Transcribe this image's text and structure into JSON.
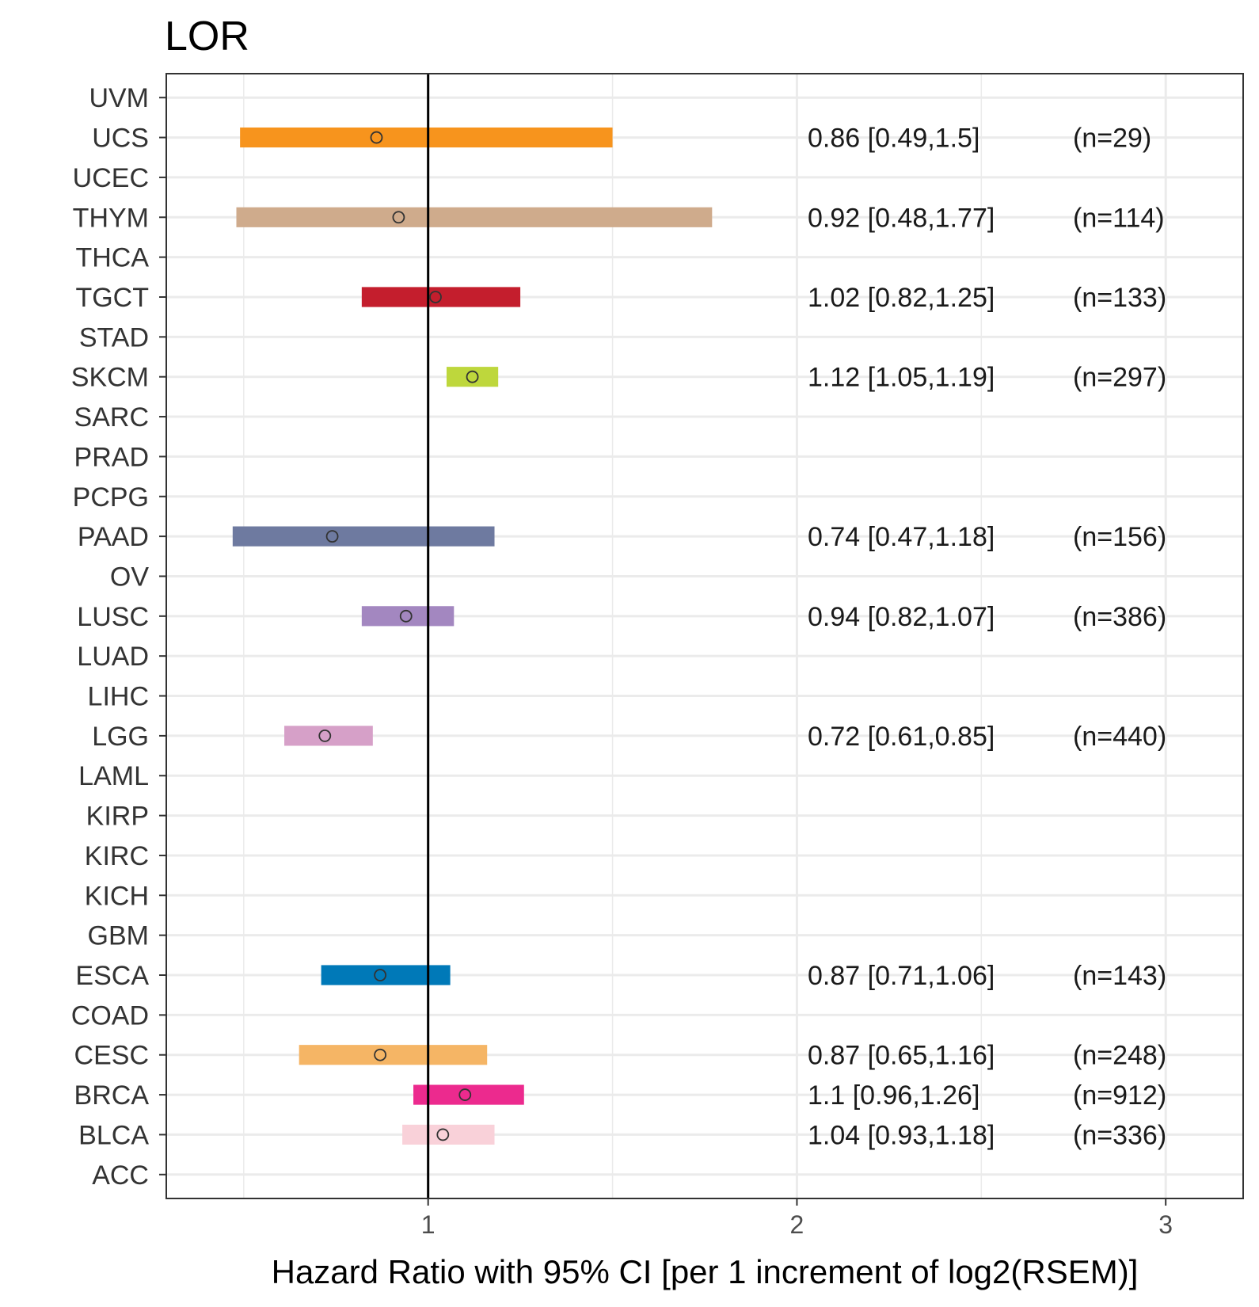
{
  "chart_data": {
    "type": "forest",
    "title": "LOR",
    "xlabel": "Hazard Ratio with 95% CI [per 1 increment of log2(RSEM)]",
    "ylabel": "",
    "xlim": [
      0.29,
      3.21
    ],
    "x_ticks": [
      1,
      2,
      3
    ],
    "x_tick_labels": [
      "1",
      "2",
      "3"
    ],
    "reference_line": 1,
    "grid": true,
    "categories": [
      "ACC",
      "BLCA",
      "BRCA",
      "CESC",
      "COAD",
      "ESCA",
      "GBM",
      "KICH",
      "KIRC",
      "KIRP",
      "LAML",
      "LGG",
      "LIHC",
      "LUAD",
      "LUSC",
      "OV",
      "PAAD",
      "PCPG",
      "PRAD",
      "SARC",
      "SKCM",
      "STAD",
      "TGCT",
      "THCA",
      "THYM",
      "UCEC",
      "UCS",
      "UVM"
    ],
    "rows": [
      {
        "cancer": "UCS",
        "hr": 0.86,
        "low": 0.49,
        "high": 1.5,
        "label": "0.86 [0.49,1.5]",
        "n": "(n=29)",
        "color": "#f7941d"
      },
      {
        "cancer": "THYM",
        "hr": 0.92,
        "low": 0.48,
        "high": 1.77,
        "label": "0.92 [0.48,1.77]",
        "n": "(n=114)",
        "color": "#cfab8c"
      },
      {
        "cancer": "TGCT",
        "hr": 1.02,
        "low": 0.82,
        "high": 1.25,
        "label": "1.02 [0.82,1.25]",
        "n": "(n=133)",
        "color": "#c41e2d"
      },
      {
        "cancer": "SKCM",
        "hr": 1.12,
        "low": 1.05,
        "high": 1.19,
        "label": "1.12 [1.05,1.19]",
        "n": "(n=297)",
        "color": "#bed73c"
      },
      {
        "cancer": "PAAD",
        "hr": 0.74,
        "low": 0.47,
        "high": 1.18,
        "label": "0.74 [0.47,1.18]",
        "n": "(n=156)",
        "color": "#6e7aa0"
      },
      {
        "cancer": "LUSC",
        "hr": 0.94,
        "low": 0.82,
        "high": 1.07,
        "label": "0.94 [0.82,1.07]",
        "n": "(n=386)",
        "color": "#a387c0"
      },
      {
        "cancer": "LGG",
        "hr": 0.72,
        "low": 0.61,
        "high": 0.85,
        "label": "0.72 [0.61,0.85]",
        "n": "(n=440)",
        "color": "#d6a0c8"
      },
      {
        "cancer": "ESCA",
        "hr": 0.87,
        "low": 0.71,
        "high": 1.06,
        "label": "0.87 [0.71,1.06]",
        "n": "(n=143)",
        "color": "#0079b8"
      },
      {
        "cancer": "CESC",
        "hr": 0.87,
        "low": 0.65,
        "high": 1.16,
        "label": "0.87 [0.65,1.16]",
        "n": "(n=248)",
        "color": "#f5b565"
      },
      {
        "cancer": "BRCA",
        "hr": 1.1,
        "low": 0.96,
        "high": 1.26,
        "label": "1.1 [0.96,1.26]",
        "n": "(n=912)",
        "color": "#ec2a8e"
      },
      {
        "cancer": "BLCA",
        "hr": 1.04,
        "low": 0.93,
        "high": 1.18,
        "label": "1.04 [0.93,1.18]",
        "n": "(n=336)",
        "color": "#f9d1d9"
      }
    ]
  }
}
